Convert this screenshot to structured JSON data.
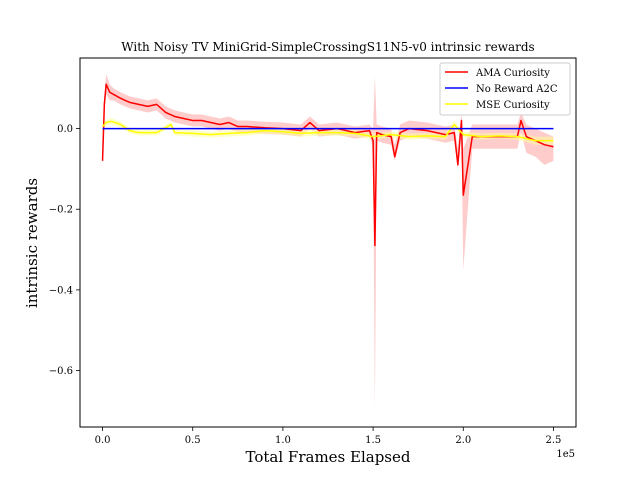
{
  "chart_data": {
    "type": "line",
    "title": "With Noisy TV MiniGrid-SimpleCrossingS11N5-v0 intrinsic rewards",
    "xlabel": "Total Frames Elapsed",
    "ylabel": "intrinsic rewards",
    "x_offset_label": "1e5",
    "xlim": [
      -0.125,
      2.625
    ],
    "ylim": [
      -0.74,
      0.175
    ],
    "x_ticks": [
      0.0,
      0.5,
      1.0,
      1.5,
      2.0,
      2.5
    ],
    "x_tick_labels": [
      "0.0",
      "0.5",
      "1.0",
      "1.5",
      "2.0",
      "2.5"
    ],
    "y_ticks": [
      0.0,
      -0.2,
      -0.4,
      -0.6
    ],
    "y_tick_labels": [
      "0.0",
      "−0.2",
      "−0.4",
      "−0.6"
    ],
    "legend_position": "top-right",
    "series": [
      {
        "name": "AMA Curiosity",
        "color": "#ff0000",
        "band_color": "#ff9999",
        "x": [
          0.0,
          0.01,
          0.02,
          0.04,
          0.06,
          0.1,
          0.15,
          0.2,
          0.25,
          0.3,
          0.35,
          0.4,
          0.45,
          0.5,
          0.55,
          0.6,
          0.65,
          0.7,
          0.75,
          0.8,
          0.9,
          1.0,
          1.1,
          1.15,
          1.2,
          1.3,
          1.4,
          1.48,
          1.5,
          1.51,
          1.52,
          1.55,
          1.6,
          1.62,
          1.65,
          1.7,
          1.8,
          1.9,
          1.95,
          1.97,
          1.99,
          2.0,
          2.05,
          2.1,
          2.2,
          2.3,
          2.32,
          2.35,
          2.4,
          2.45,
          2.5
        ],
        "y": [
          -0.08,
          0.06,
          0.11,
          0.09,
          0.085,
          0.075,
          0.065,
          0.06,
          0.055,
          0.06,
          0.04,
          0.03,
          0.025,
          0.02,
          0.02,
          0.015,
          0.01,
          0.015,
          0.005,
          0.005,
          0.002,
          0.0,
          -0.005,
          0.015,
          -0.005,
          0.0,
          -0.01,
          -0.005,
          -0.03,
          -0.29,
          -0.01,
          -0.015,
          -0.02,
          -0.07,
          -0.01,
          0.0,
          -0.005,
          -0.015,
          -0.01,
          -0.09,
          0.02,
          -0.165,
          -0.02,
          -0.02,
          -0.02,
          -0.02,
          0.02,
          -0.02,
          -0.03,
          -0.04,
          -0.045
        ],
        "lower": [
          -0.09,
          0.04,
          0.085,
          0.07,
          0.07,
          0.06,
          0.05,
          0.045,
          0.04,
          0.045,
          0.025,
          0.015,
          0.01,
          0.005,
          0.005,
          0.0,
          -0.005,
          0.0,
          -0.01,
          -0.01,
          -0.013,
          -0.015,
          -0.02,
          0.0,
          -0.02,
          -0.015,
          -0.025,
          -0.02,
          -0.045,
          -0.7,
          -0.03,
          -0.035,
          -0.04,
          -0.08,
          -0.03,
          -0.02,
          -0.025,
          -0.035,
          -0.03,
          -0.1,
          -0.01,
          -0.35,
          -0.05,
          -0.05,
          -0.05,
          -0.05,
          -0.01,
          -0.06,
          -0.07,
          -0.09,
          -0.08
        ],
        "upper": [
          -0.07,
          0.08,
          0.135,
          0.11,
          0.1,
          0.09,
          0.08,
          0.075,
          0.07,
          0.075,
          0.055,
          0.045,
          0.04,
          0.035,
          0.035,
          0.03,
          0.025,
          0.03,
          0.02,
          0.02,
          0.017,
          0.015,
          0.01,
          0.03,
          0.01,
          0.015,
          0.005,
          0.01,
          0.0,
          0.13,
          0.01,
          0.005,
          0.0,
          -0.04,
          0.01,
          0.02,
          0.015,
          0.005,
          0.01,
          -0.05,
          0.04,
          -0.05,
          0.01,
          0.01,
          0.01,
          0.01,
          0.04,
          0.01,
          0.0,
          -0.01,
          -0.02
        ]
      },
      {
        "name": "No Reward A2C",
        "color": "#0000ff",
        "x": [
          0.0,
          2.5
        ],
        "y": [
          0.0,
          0.0
        ]
      },
      {
        "name": "MSE Curiosity",
        "color": "#ffff00",
        "band_color": "#ffff99",
        "x": [
          0.0,
          0.02,
          0.05,
          0.1,
          0.15,
          0.2,
          0.3,
          0.38,
          0.4,
          0.5,
          0.6,
          0.7,
          0.8,
          0.9,
          1.0,
          1.1,
          1.2,
          1.3,
          1.4,
          1.5,
          1.6,
          1.7,
          1.8,
          1.9,
          1.95,
          2.0,
          2.1,
          2.2,
          2.3,
          2.4,
          2.5
        ],
        "y": [
          0.005,
          0.015,
          0.018,
          0.01,
          -0.005,
          -0.01,
          -0.01,
          0.01,
          -0.01,
          -0.012,
          -0.015,
          -0.012,
          -0.01,
          -0.005,
          -0.008,
          -0.012,
          -0.01,
          -0.01,
          -0.012,
          -0.02,
          -0.015,
          -0.02,
          -0.018,
          -0.02,
          0.01,
          -0.015,
          -0.02,
          -0.018,
          -0.02,
          -0.03,
          -0.03
        ],
        "lower": [
          -0.005,
          0.008,
          0.01,
          0.002,
          -0.012,
          -0.017,
          -0.017,
          0.003,
          -0.017,
          -0.02,
          -0.022,
          -0.02,
          -0.018,
          -0.013,
          -0.015,
          -0.02,
          -0.018,
          -0.018,
          -0.02,
          -0.028,
          -0.022,
          -0.028,
          -0.025,
          -0.028,
          0.0,
          -0.022,
          -0.028,
          -0.025,
          -0.028,
          -0.04,
          -0.04
        ],
        "upper": [
          0.015,
          0.022,
          0.026,
          0.018,
          0.002,
          -0.003,
          -0.003,
          0.017,
          -0.003,
          -0.004,
          -0.008,
          -0.004,
          -0.002,
          0.003,
          0.0,
          -0.004,
          -0.002,
          -0.002,
          -0.004,
          -0.012,
          -0.008,
          -0.012,
          -0.011,
          -0.012,
          0.02,
          -0.008,
          -0.012,
          -0.011,
          -0.012,
          -0.02,
          -0.02
        ]
      }
    ]
  }
}
